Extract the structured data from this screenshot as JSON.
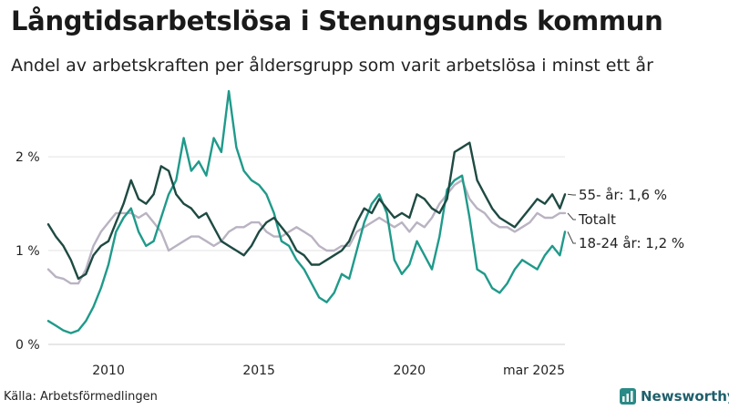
{
  "title": "Långtidsarbetslösa i Stenungsunds kommun",
  "subtitle": "Andel av arbetskraften per åldersgrupp som varit arbetslösa i minst ett år",
  "source": "Källa: Arbetsförmedlingen",
  "brand": "Newsworthy",
  "chart_data": {
    "type": "line",
    "x_ticks": [
      "2010",
      "2015",
      "2020",
      "mar 2025"
    ],
    "x_tick_values": [
      2010.0,
      2015.0,
      2020.0,
      2025.17
    ],
    "xlim": [
      2008.0,
      2025.17
    ],
    "y_ticks": [
      "0 %",
      "1 %",
      "2 %"
    ],
    "y_tick_values": [
      0,
      1,
      2
    ],
    "ylim": [
      0,
      2.7
    ],
    "grid": true,
    "series": [
      {
        "name": "55- år",
        "end_label": "55- år: 1,6 %",
        "color": "#1e4a42",
        "x": [
          2008.0,
          2008.25,
          2008.5,
          2008.75,
          2009.0,
          2009.25,
          2009.5,
          2009.75,
          2010.0,
          2010.25,
          2010.5,
          2010.75,
          2011.0,
          2011.25,
          2011.5,
          2011.75,
          2012.0,
          2012.25,
          2012.5,
          2012.75,
          2013.0,
          2013.25,
          2013.5,
          2013.75,
          2014.0,
          2014.25,
          2014.5,
          2014.75,
          2015.0,
          2015.25,
          2015.5,
          2015.75,
          2016.0,
          2016.25,
          2016.5,
          2016.75,
          2017.0,
          2017.25,
          2017.5,
          2017.75,
          2018.0,
          2018.25,
          2018.5,
          2018.75,
          2019.0,
          2019.25,
          2019.5,
          2019.75,
          2020.0,
          2020.25,
          2020.5,
          2020.75,
          2021.0,
          2021.25,
          2021.5,
          2021.75,
          2022.0,
          2022.25,
          2022.5,
          2022.75,
          2023.0,
          2023.25,
          2023.5,
          2023.75,
          2024.0,
          2024.25,
          2024.5,
          2024.75,
          2025.0,
          2025.17
        ],
        "values": [
          1.28,
          1.15,
          1.05,
          0.9,
          0.7,
          0.75,
          0.95,
          1.05,
          1.1,
          1.3,
          1.5,
          1.75,
          1.55,
          1.5,
          1.6,
          1.9,
          1.85,
          1.6,
          1.5,
          1.45,
          1.35,
          1.4,
          1.25,
          1.1,
          1.05,
          1.0,
          0.95,
          1.05,
          1.2,
          1.3,
          1.35,
          1.25,
          1.15,
          1.0,
          0.95,
          0.85,
          0.85,
          0.9,
          0.95,
          1.0,
          1.1,
          1.3,
          1.45,
          1.4,
          1.55,
          1.45,
          1.35,
          1.4,
          1.35,
          1.6,
          1.55,
          1.45,
          1.4,
          1.55,
          2.05,
          2.1,
          2.15,
          1.75,
          1.6,
          1.45,
          1.35,
          1.3,
          1.25,
          1.35,
          1.45,
          1.55,
          1.5,
          1.6,
          1.45,
          1.6
        ]
      },
      {
        "name": "Totalt",
        "end_label": "Totalt",
        "color": "#b9b3c2",
        "x": [
          2008.0,
          2008.25,
          2008.5,
          2008.75,
          2009.0,
          2009.25,
          2009.5,
          2009.75,
          2010.0,
          2010.25,
          2010.5,
          2010.75,
          2011.0,
          2011.25,
          2011.5,
          2011.75,
          2012.0,
          2012.25,
          2012.5,
          2012.75,
          2013.0,
          2013.25,
          2013.5,
          2013.75,
          2014.0,
          2014.25,
          2014.5,
          2014.75,
          2015.0,
          2015.25,
          2015.5,
          2015.75,
          2016.0,
          2016.25,
          2016.5,
          2016.75,
          2017.0,
          2017.25,
          2017.5,
          2017.75,
          2018.0,
          2018.25,
          2018.5,
          2018.75,
          2019.0,
          2019.25,
          2019.5,
          2019.75,
          2020.0,
          2020.25,
          2020.5,
          2020.75,
          2021.0,
          2021.25,
          2021.5,
          2021.75,
          2022.0,
          2022.25,
          2022.5,
          2022.75,
          2023.0,
          2023.25,
          2023.5,
          2023.75,
          2024.0,
          2024.25,
          2024.5,
          2024.75,
          2025.0,
          2025.17
        ],
        "values": [
          0.8,
          0.72,
          0.7,
          0.65,
          0.65,
          0.8,
          1.05,
          1.2,
          1.3,
          1.4,
          1.4,
          1.4,
          1.35,
          1.4,
          1.3,
          1.2,
          1.0,
          1.05,
          1.1,
          1.15,
          1.15,
          1.1,
          1.05,
          1.1,
          1.2,
          1.25,
          1.25,
          1.3,
          1.3,
          1.2,
          1.15,
          1.15,
          1.2,
          1.25,
          1.2,
          1.15,
          1.05,
          1.0,
          1.0,
          1.05,
          1.05,
          1.2,
          1.25,
          1.3,
          1.35,
          1.3,
          1.25,
          1.3,
          1.2,
          1.3,
          1.25,
          1.35,
          1.5,
          1.6,
          1.7,
          1.75,
          1.55,
          1.45,
          1.4,
          1.3,
          1.25,
          1.25,
          1.2,
          1.25,
          1.3,
          1.4,
          1.35,
          1.35,
          1.4,
          1.4
        ]
      },
      {
        "name": "18-24 år",
        "end_label": "18-24 år: 1,2 %",
        "color": "#1f9a8a",
        "x": [
          2008.0,
          2008.25,
          2008.5,
          2008.75,
          2009.0,
          2009.25,
          2009.5,
          2009.75,
          2010.0,
          2010.25,
          2010.5,
          2010.75,
          2011.0,
          2011.25,
          2011.5,
          2011.75,
          2012.0,
          2012.25,
          2012.5,
          2012.75,
          2013.0,
          2013.25,
          2013.5,
          2013.75,
          2014.0,
          2014.25,
          2014.5,
          2014.75,
          2015.0,
          2015.25,
          2015.5,
          2015.75,
          2016.0,
          2016.25,
          2016.5,
          2016.75,
          2017.0,
          2017.25,
          2017.5,
          2017.75,
          2018.0,
          2018.25,
          2018.5,
          2018.75,
          2019.0,
          2019.25,
          2019.5,
          2019.75,
          2020.0,
          2020.25,
          2020.5,
          2020.75,
          2021.0,
          2021.25,
          2021.5,
          2021.75,
          2022.0,
          2022.25,
          2022.5,
          2022.75,
          2023.0,
          2023.25,
          2023.5,
          2023.75,
          2024.0,
          2024.25,
          2024.5,
          2024.75,
          2025.0,
          2025.17
        ],
        "values": [
          0.25,
          0.2,
          0.15,
          0.12,
          0.15,
          0.25,
          0.4,
          0.6,
          0.85,
          1.2,
          1.35,
          1.45,
          1.2,
          1.05,
          1.1,
          1.35,
          1.6,
          1.75,
          2.2,
          1.85,
          1.95,
          1.8,
          2.2,
          2.05,
          2.7,
          2.1,
          1.85,
          1.75,
          1.7,
          1.6,
          1.4,
          1.1,
          1.05,
          0.9,
          0.8,
          0.65,
          0.5,
          0.45,
          0.55,
          0.75,
          0.7,
          1.0,
          1.3,
          1.5,
          1.6,
          1.4,
          0.9,
          0.75,
          0.85,
          1.1,
          0.95,
          0.8,
          1.15,
          1.65,
          1.75,
          1.8,
          1.35,
          0.8,
          0.75,
          0.6,
          0.55,
          0.65,
          0.8,
          0.9,
          0.85,
          0.8,
          0.95,
          1.05,
          0.95,
          1.2
        ]
      }
    ]
  }
}
